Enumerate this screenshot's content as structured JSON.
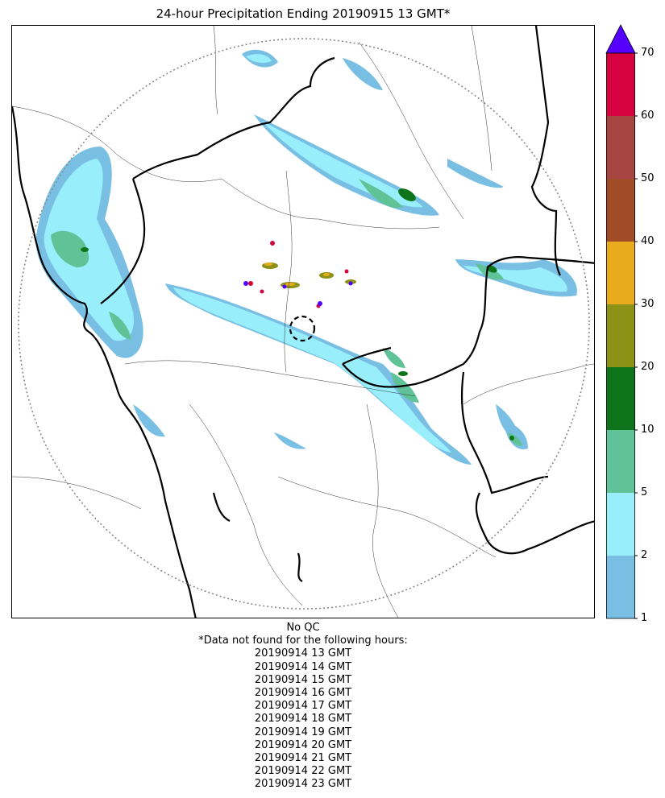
{
  "title": "24-hour Precipitation Ending 20190915 13 GMT*",
  "colorbar": {
    "ticks": [
      "1",
      "2",
      "5",
      "10",
      "20",
      "30",
      "40",
      "50",
      "60",
      "70"
    ],
    "colors": [
      "#79bfe4",
      "#98eefb",
      "#5fc397",
      "#0e7419",
      "#8b9216",
      "#e8ab1e",
      "#a04c26",
      "#a64541",
      "#d60240"
    ],
    "extend_color": "#5500ff"
  },
  "notes": {
    "qc": "No QC",
    "missing_header": "*Data not found for the following hours:",
    "missing_hours": [
      "20190914 13 GMT",
      "20190914 14 GMT",
      "20190914 15 GMT",
      "20190914 16 GMT",
      "20190914 17 GMT",
      "20190914 18 GMT",
      "20190914 19 GMT",
      "20190914 20 GMT",
      "20190914 21 GMT",
      "20190914 22 GMT",
      "20190914 23 GMT"
    ]
  },
  "map": {
    "range_ring": "dotted-gray",
    "radar_site_marker": "dashed-circle"
  }
}
